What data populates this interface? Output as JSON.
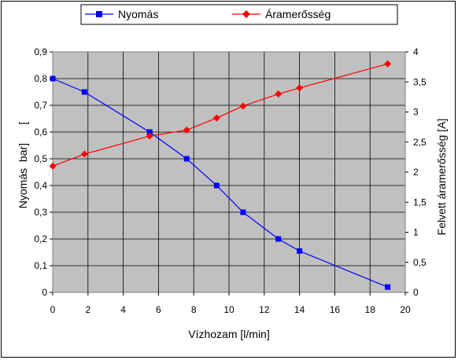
{
  "chart_data": {
    "type": "line",
    "xlabel": "Vízhozam [l/min]",
    "ylabel": "Nyomás  bar]      [",
    "y2label": "Felvett áramerősség [A]",
    "xlim": [
      0,
      20
    ],
    "ylim": [
      0,
      0.9
    ],
    "y2lim": [
      0,
      4
    ],
    "x_ticks": [
      "0",
      "2",
      "4",
      "6",
      "8",
      "10",
      "12",
      "14",
      "16",
      "18",
      "20"
    ],
    "y_ticks": [
      "0",
      "0,1",
      "0,2",
      "0,3",
      "0,4",
      "0,5",
      "0,6",
      "0,7",
      "0,8",
      "0,9"
    ],
    "y2_ticks": [
      "0",
      "0,5",
      "1",
      "1,5",
      "2",
      "2,5",
      "3",
      "3,5",
      "4"
    ],
    "grid": true,
    "plot_background": "#c0c0c0",
    "legend_position": "top",
    "series": [
      {
        "name": "Nyomás",
        "axis": "left",
        "color": "#0000ff",
        "marker": "square",
        "x": [
          0,
          1.8,
          5.5,
          7.6,
          9.3,
          10.8,
          12.8,
          14,
          19
        ],
        "y": [
          0.8,
          0.75,
          0.6,
          0.5,
          0.4,
          0.3,
          0.2,
          0.155,
          0.02
        ]
      },
      {
        "name": "Áramerősség",
        "axis": "right",
        "color": "#ff0000",
        "marker": "diamond",
        "x": [
          0,
          1.8,
          5.5,
          7.6,
          9.3,
          10.8,
          12.8,
          14,
          19
        ],
        "y": [
          2.1,
          2.3,
          2.6,
          2.7,
          2.9,
          3.1,
          3.3,
          3.4,
          3.8
        ]
      }
    ]
  }
}
